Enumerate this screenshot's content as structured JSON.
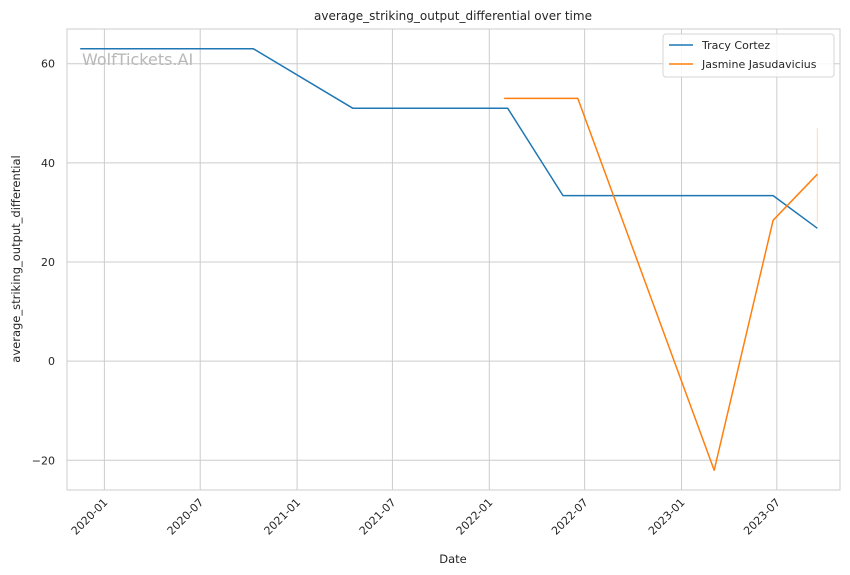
{
  "chart_data": {
    "type": "line",
    "title": "average_striking_output_differential over time",
    "xlabel": "Date",
    "ylabel": "average_striking_output_differential",
    "watermark": "WolfTickets.AI",
    "grid": true,
    "legend_position": "top-right",
    "xlim": [
      "2019-10-22",
      "2023-10-29"
    ],
    "ylim": [
      -26,
      67
    ],
    "x_ticks": [
      "2020-01",
      "2020-07",
      "2021-01",
      "2021-07",
      "2022-01",
      "2022-07",
      "2023-01",
      "2023-07"
    ],
    "y_ticks": [
      -20,
      0,
      20,
      40,
      60
    ],
    "y_tick_labels": [
      "−20",
      "0",
      "20",
      "40",
      "60"
    ],
    "series": [
      {
        "name": "Tracy Cortez",
        "color": "#1f77b4",
        "x": [
          "2019-11-16",
          "2020-10-10",
          "2021-04-17",
          "2022-02-05",
          "2022-05-21",
          "2023-06-24",
          "2023-09-16"
        ],
        "y": [
          63,
          63,
          51,
          51,
          33.4,
          33.4,
          26.8
        ]
      },
      {
        "name": "Jasmine Jasudavicius",
        "color": "#ff7f0e",
        "x": [
          "2022-01-29",
          "2022-06-18",
          "2023-03-04",
          "2023-06-24",
          "2023-09-16"
        ],
        "y": [
          53,
          53,
          -22,
          28.4,
          37.7
        ]
      }
    ],
    "error_band": {
      "color": "#ff7f0e",
      "x": "2023-09-16",
      "y_range": [
        28,
        47
      ]
    }
  }
}
